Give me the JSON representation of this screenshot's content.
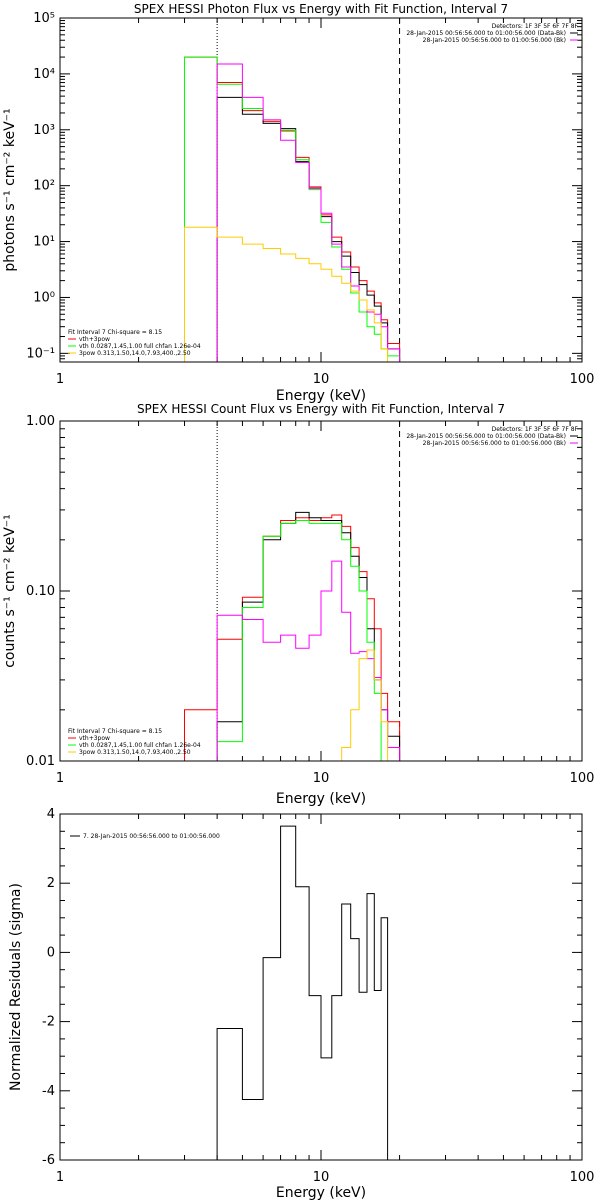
{
  "chart_data": [
    {
      "type": "line",
      "title": "SPEX HESSI Photon Flux vs Energy with Fit Function, Interval 7",
      "xlabel": "Energy (keV)",
      "ylabel": "photons s⁻¹ cm⁻² keV⁻¹",
      "xscale": "log",
      "yscale": "log",
      "xlim": [
        1,
        100
      ],
      "ylim": [
        0.07,
        100000
      ],
      "x_ticks": [
        "1",
        "10",
        "100"
      ],
      "y_ticks": [
        {
          "value": 0.1,
          "label": "10⁻¹"
        },
        {
          "value": 1,
          "label": "10⁰"
        },
        {
          "value": 10,
          "label": "10¹"
        },
        {
          "value": 100,
          "label": "10²"
        },
        {
          "value": 1000,
          "label": "10³"
        },
        {
          "value": 10000,
          "label": "10⁴"
        },
        {
          "value": 100000,
          "label": "10⁵"
        }
      ],
      "legend_right": [
        "Detectors: 1F 3F 5F 6F 7F 8F",
        "28-Jan-2015 00:56:56.000 to 01:00:56.000 (Data-Bk)",
        "28-Jan-2015 00:56:56.000 to 01:00:56.000 (Bk)"
      ],
      "legend_right_colors": [
        "#000000",
        "#ff00ff"
      ],
      "legend_left_header": "Fit Interval 7   Chi-square = 8.15",
      "legend_left": [
        {
          "text": "vth+3pow",
          "color": "#ff0000"
        },
        {
          "text": "vth 0.0287,1.45,1.00  full chfan 1.26e-04",
          "color": "#00ff00"
        },
        {
          "text": "3pow 0.313,1.50,14.0,7.93,400.,2.50",
          "color": "#ffcc00"
        }
      ],
      "vlines": [
        {
          "x": 4.0,
          "style": "dotted"
        },
        {
          "x": 20.0,
          "style": "dashed"
        }
      ],
      "edges": [
        3.0,
        4.0,
        5.0,
        6.0,
        7.0,
        8.0,
        9.0,
        10.0,
        11.0,
        12.0,
        13.0,
        14.0,
        15.0,
        16.0,
        17.0,
        18.0,
        20.0
      ],
      "series": [
        {
          "color": "#ff0000",
          "values": [
            20000,
            7000,
            2200,
            1400,
            950,
            320,
            95,
            30,
            12,
            6.5,
            3.5,
            2.0,
            1.3,
            0.8,
            0.4,
            0.15
          ]
        },
        {
          "color": "#000000",
          "values": [
            null,
            3800,
            1900,
            1300,
            1050,
            270,
            90,
            28,
            10,
            5.5,
            2.8,
            1.7,
            1.1,
            0.7,
            0.35,
            0.12
          ]
        },
        {
          "color": "#00ff00",
          "values": [
            20000,
            6500,
            2400,
            1500,
            980,
            290,
            85,
            22,
            8,
            3.2,
            1.2,
            0.55,
            0.3,
            0.22,
            0.12,
            0.09
          ]
        },
        {
          "color": "#ff00ff",
          "values": [
            null,
            15000,
            3800,
            1500,
            650,
            260,
            90,
            32,
            9,
            3.5,
            1.6,
            0.9,
            0.55,
            0.5,
            0.3,
            0.12
          ]
        },
        {
          "color": "#ffcc00",
          "values": [
            18,
            12,
            9,
            7.5,
            6,
            5,
            4,
            3.2,
            2.4,
            1.8,
            1.3,
            0.9,
            0.6,
            0.35,
            0.12,
            null
          ]
        }
      ]
    },
    {
      "type": "line",
      "title": "SPEX HESSI Count Flux vs Energy with Fit Function, Interval 7",
      "xlabel": "Energy (keV)",
      "ylabel": "counts s⁻¹ cm⁻² keV⁻¹",
      "xscale": "log",
      "yscale": "log",
      "xlim": [
        1,
        100
      ],
      "ylim": [
        0.01,
        1.0
      ],
      "x_ticks": [
        "1",
        "10",
        "100"
      ],
      "y_ticks": [
        {
          "value": 0.01,
          "label": "0.01"
        },
        {
          "value": 0.1,
          "label": "0.10"
        },
        {
          "value": 1.0,
          "label": "1.00"
        }
      ],
      "legend_right": [
        "Detectors: 1F 3F 5F 6F 7F 8F",
        "28-Jan-2015 00:56:56.000 to 01:00:56.000 (Data-Bk)",
        "28-Jan-2015 00:56:56.000 to 01:00:56.000 (Bk)"
      ],
      "legend_right_colors": [
        "#000000",
        "#ff00ff"
      ],
      "legend_left_header": "Fit Interval 7   Chi-square = 8.15",
      "legend_left": [
        {
          "text": "vth+3pow",
          "color": "#ff0000"
        },
        {
          "text": "vth 0.0287,1.45,1.00  full chfan 1.26e-04",
          "color": "#00ff00"
        },
        {
          "text": "3pow 0.313,1.50,14.0,7.93,400.,2.50",
          "color": "#ffcc00"
        }
      ],
      "vlines": [
        {
          "x": 4.0,
          "style": "dotted"
        },
        {
          "x": 20.0,
          "style": "dashed"
        }
      ],
      "edges": [
        3.0,
        4.0,
        5.0,
        6.0,
        7.0,
        8.0,
        9.0,
        10.0,
        11.0,
        12.0,
        13.0,
        14.0,
        15.0,
        16.0,
        17.0,
        18.0,
        20.0
      ],
      "series": [
        {
          "color": "#ff0000",
          "values": [
            0.02,
            0.052,
            0.092,
            0.21,
            0.26,
            0.27,
            0.26,
            0.27,
            0.28,
            0.24,
            0.18,
            0.13,
            0.09,
            0.06,
            0.025,
            0.017
          ]
        },
        {
          "color": "#000000",
          "values": [
            null,
            0.017,
            0.086,
            0.2,
            0.25,
            0.29,
            0.27,
            0.26,
            0.26,
            0.22,
            0.16,
            0.12,
            0.06,
            0.03,
            0.02,
            0.014
          ]
        },
        {
          "color": "#00ff00",
          "values": [
            0.009,
            0.013,
            0.08,
            0.21,
            0.25,
            0.26,
            0.25,
            0.25,
            0.25,
            0.2,
            0.14,
            0.1,
            0.05,
            0.025,
            0.01,
            0.009
          ]
        },
        {
          "color": "#ff00ff",
          "values": [
            null,
            0.072,
            0.068,
            0.05,
            0.055,
            0.046,
            0.055,
            0.1,
            0.15,
            0.075,
            0.043,
            0.044,
            0.04,
            0.031,
            0.02,
            0.012
          ]
        },
        {
          "color": "#ffcc00",
          "values": [
            null,
            null,
            null,
            null,
            null,
            null,
            null,
            null,
            0.009,
            0.012,
            0.02,
            0.04,
            0.045,
            0.03,
            0.017,
            0.008
          ]
        }
      ]
    },
    {
      "type": "line",
      "title": "",
      "xlabel": "Energy (keV)",
      "ylabel": "Normalized Residuals (sigma)",
      "xscale": "log",
      "yscale": "linear",
      "xlim": [
        1,
        100
      ],
      "ylim": [
        -6,
        4
      ],
      "x_ticks": [
        "1",
        "10",
        "100"
      ],
      "y_ticks": [
        {
          "value": -6,
          "label": "-6"
        },
        {
          "value": -4,
          "label": "-4"
        },
        {
          "value": -2,
          "label": "-2"
        },
        {
          "value": 0,
          "label": "0"
        },
        {
          "value": 2,
          "label": "2"
        },
        {
          "value": 4,
          "label": "4"
        }
      ],
      "legend_left_header": "7. 28-Jan-2015 00:56:56.000 to 01:00:56.000",
      "edges": [
        4.0,
        5.0,
        6.0,
        7.0,
        8.0,
        9.0,
        10.0,
        11.0,
        12.0,
        13.0,
        14.0,
        15.0,
        16.0,
        17.0,
        18.0,
        20.0
      ],
      "series": [
        {
          "color": "#000000",
          "values": [
            -2.2,
            -4.25,
            -0.15,
            3.65,
            1.9,
            -1.25,
            -3.05,
            -1.25,
            1.4,
            0.4,
            -1.15,
            1.7,
            -1.1,
            1.0,
            -6.0
          ]
        }
      ]
    }
  ]
}
